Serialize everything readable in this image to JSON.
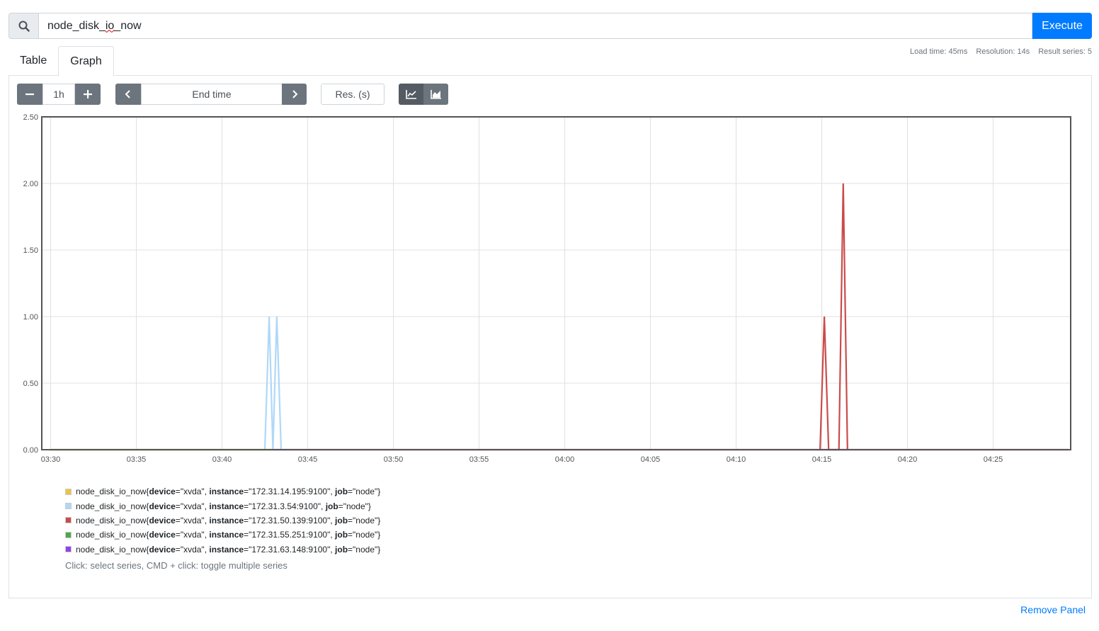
{
  "query": {
    "text_before": "node_disk_",
    "text_squiggle": "io",
    "text_after": "_now",
    "execute_label": "Execute"
  },
  "tabs": [
    {
      "label": "Table",
      "active": false
    },
    {
      "label": "Graph",
      "active": true
    }
  ],
  "stats": {
    "load_time": "Load time: 45ms",
    "resolution": "Resolution: 14s",
    "result_series": "Result series: 5"
  },
  "controls": {
    "range": "1h",
    "end_time_placeholder": "End time",
    "resolution_placeholder": "Res. (s)",
    "chart_modes": [
      "line",
      "stacked"
    ]
  },
  "chart_data": {
    "type": "line",
    "y_ticks": [
      "0.00",
      "0.50",
      "1.00",
      "1.50",
      "2.00",
      "2.50"
    ],
    "x_ticks": [
      "03:30",
      "03:35",
      "03:40",
      "03:45",
      "03:50",
      "03:55",
      "04:00",
      "04:05",
      "04:10",
      "04:15",
      "04:20",
      "04:25"
    ],
    "ylim": [
      0,
      2.5
    ],
    "xlim_minutes": [
      0,
      59.4
    ],
    "series": [
      {
        "name": "node_disk_io_now{device=\"xvda\", instance=\"172.31.14.195:9100\", job=\"node\"}",
        "color": "#edc240",
        "points": [
          [
            0,
            0
          ],
          [
            59.4,
            0
          ]
        ]
      },
      {
        "name": "node_disk_io_now{device=\"xvda\", instance=\"172.31.3.54:9100\", job=\"node\"}",
        "color": "#afd8f8",
        "points": [
          [
            12.5,
            0
          ],
          [
            12.75,
            1
          ],
          [
            12.97,
            0
          ],
          [
            13.2,
            1
          ],
          [
            13.45,
            0
          ]
        ]
      },
      {
        "name": "node_disk_io_now{device=\"xvda\", instance=\"172.31.50.139:9100\", job=\"node\"}",
        "color": "#cb4b4b",
        "points": [
          [
            44.9,
            0
          ],
          [
            45.15,
            1
          ],
          [
            45.4,
            0
          ],
          [
            46.0,
            0
          ],
          [
            46.25,
            2
          ],
          [
            46.5,
            0
          ]
        ]
      },
      {
        "name": "node_disk_io_now{device=\"xvda\", instance=\"172.31.55.251:9100\", job=\"node\"}",
        "color": "#4da74d",
        "points": [
          [
            0,
            0
          ],
          [
            13.0,
            0
          ]
        ]
      },
      {
        "name": "node_disk_io_now{device=\"xvda\", instance=\"172.31.63.148:9100\", job=\"node\"}",
        "color": "#9440ed",
        "points": [
          [
            13.0,
            0
          ],
          [
            59.4,
            0
          ]
        ]
      }
    ]
  },
  "legend": [
    {
      "metric": "node_disk_io_now",
      "device": "\"xvda\"",
      "instance": "\"172.31.14.195:9100\"",
      "job": "\"node\"",
      "color": "#edc240"
    },
    {
      "metric": "node_disk_io_now",
      "device": "\"xvda\"",
      "instance": "\"172.31.3.54:9100\"",
      "job": "\"node\"",
      "color": "#afd8f8"
    },
    {
      "metric": "node_disk_io_now",
      "device": "\"xvda\"",
      "instance": "\"172.31.50.139:9100\"",
      "job": "\"node\"",
      "color": "#cb4b4b"
    },
    {
      "metric": "node_disk_io_now",
      "device": "\"xvda\"",
      "instance": "\"172.31.55.251:9100\"",
      "job": "\"node\"",
      "color": "#4da74d"
    },
    {
      "metric": "node_disk_io_now",
      "device": "\"xvda\"",
      "instance": "\"172.31.63.148:9100\"",
      "job": "\"node\"",
      "color": "#9440ed"
    }
  ],
  "legend_hint": "Click: select series, CMD + click: toggle multiple series",
  "remove_panel_label": "Remove Panel",
  "colors": {
    "accent": "#007bff",
    "button_dark": "#6c757d"
  }
}
